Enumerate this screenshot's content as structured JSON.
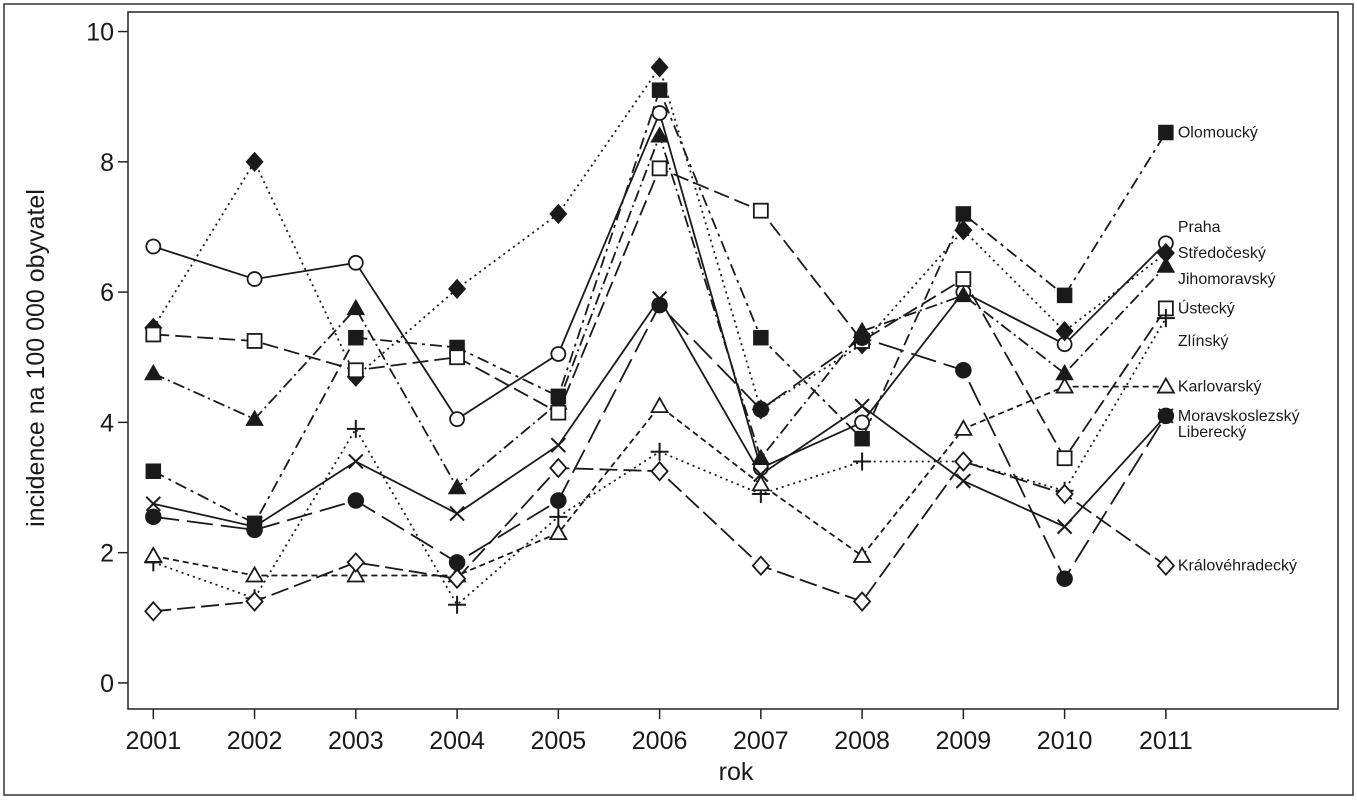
{
  "chart_data": {
    "type": "line",
    "xlabel": "rok",
    "ylabel": "incidence na 100 000 obyvatel",
    "xlim": [
      2000.75,
      2012.7
    ],
    "ylim": [
      -0.4,
      10.3
    ],
    "x": [
      2001,
      2002,
      2003,
      2004,
      2005,
      2006,
      2007,
      2008,
      2009,
      2010,
      2011
    ],
    "x_ticks": [
      "2001",
      "2002",
      "2003",
      "2004",
      "2005",
      "2006",
      "2007",
      "2008",
      "2009",
      "2010",
      "2011"
    ],
    "y_ticks": [
      0,
      2,
      4,
      6,
      8,
      10
    ],
    "y_tick_labels": [
      "0",
      "2",
      "4",
      "6",
      "8",
      "10"
    ],
    "grid": false,
    "legend": "direct labels at right end of lines",
    "series": [
      {
        "name": "Olomoucký",
        "marker": "filled-square",
        "dash": "12 5 3 5",
        "values": [
          3.25,
          2.45,
          5.3,
          5.15,
          4.4,
          9.1,
          5.3,
          3.75,
          7.2,
          5.95,
          8.45
        ]
      },
      {
        "name": "Praha",
        "marker": "open-circle",
        "dash": "",
        "values": [
          6.7,
          6.2,
          6.45,
          4.05,
          5.05,
          8.75,
          3.3,
          4.0,
          6.0,
          5.2,
          6.75
        ]
      },
      {
        "name": "Středočeský",
        "marker": "filled-diamond",
        "dash": "2 4",
        "values": [
          5.45,
          8.0,
          4.7,
          6.05,
          7.2,
          9.45,
          4.2,
          5.2,
          6.95,
          5.4,
          6.6
        ]
      },
      {
        "name": "Jihomoravský",
        "marker": "filled-triangle",
        "dash": "12 4 2 4",
        "values": [
          4.75,
          4.05,
          5.75,
          3.0,
          4.3,
          8.4,
          3.45,
          5.4,
          5.95,
          4.75,
          6.4
        ]
      },
      {
        "name": "Ústecký",
        "marker": "open-square",
        "dash": "16 6",
        "values": [
          5.35,
          5.25,
          4.8,
          5.0,
          4.15,
          7.9,
          7.25,
          5.25,
          6.2,
          3.45,
          5.75
        ]
      },
      {
        "name": "Zlínský",
        "marker": "plus",
        "dash": "2 4",
        "values": [
          1.85,
          1.3,
          3.9,
          1.2,
          2.55,
          3.55,
          2.9,
          3.4,
          3.4,
          2.95,
          5.6
        ]
      },
      {
        "name": "Karlovarský",
        "marker": "open-triangle",
        "dash": "6 4",
        "values": [
          1.95,
          1.65,
          1.65,
          1.65,
          2.3,
          4.25,
          3.05,
          1.95,
          3.9,
          4.55,
          4.55
        ]
      },
      {
        "name": "Moravskoslezský",
        "marker": "filled-circle",
        "dash": "26 8",
        "values": [
          2.55,
          2.35,
          2.8,
          1.85,
          2.8,
          5.8,
          4.2,
          5.3,
          4.8,
          1.6,
          4.1
        ]
      },
      {
        "name": "Liberecký",
        "marker": "cross",
        "dash": "",
        "values": [
          2.75,
          2.4,
          3.4,
          2.6,
          3.65,
          5.9,
          3.2,
          4.25,
          3.1,
          2.4,
          4.1
        ]
      },
      {
        "name": "Královéhradecký",
        "marker": "open-diamond",
        "dash": "18 6",
        "values": [
          1.1,
          1.25,
          1.85,
          1.6,
          3.3,
          3.25,
          1.8,
          1.25,
          3.4,
          2.9,
          1.8
        ]
      }
    ],
    "series_label_y": [
      8.45,
      7.0,
      6.6,
      6.2,
      5.75,
      5.25,
      4.55,
      4.1,
      3.85,
      1.8
    ]
  }
}
